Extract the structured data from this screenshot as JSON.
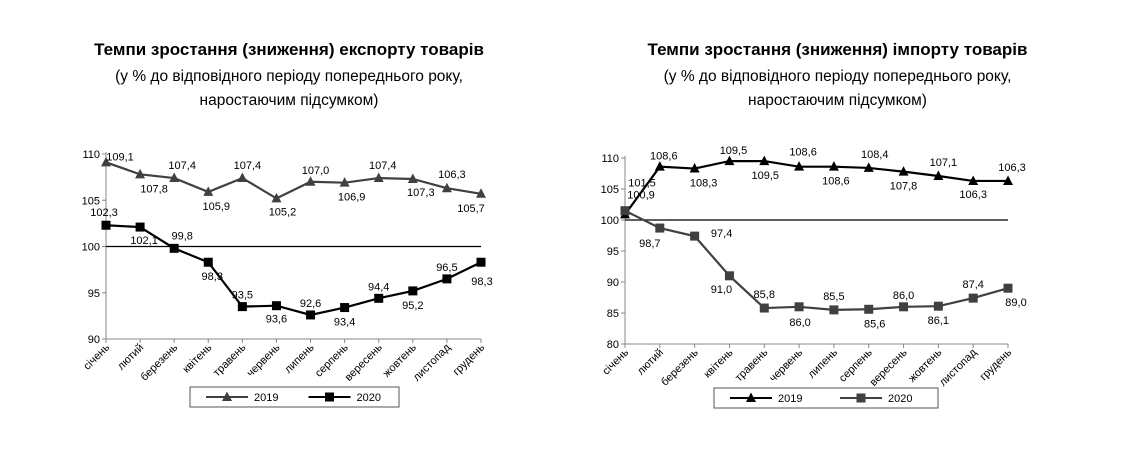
{
  "chart_data": [
    {
      "type": "line",
      "title": "Темпи зростання (зниження) експорту товарів",
      "subtitle_line1": "(у % до відповідного періоду попереднього року,",
      "subtitle_line2": "наростаючим підсумком)",
      "categories": [
        "січень",
        "лютий",
        "березень",
        "квітень",
        "травень",
        "червень",
        "липень",
        "серпень",
        "вересень",
        "жовтень",
        "листопад",
        "грудень"
      ],
      "ylim": [
        90,
        110
      ],
      "yticks": [
        90,
        95,
        100,
        105,
        110
      ],
      "reference_line": 100,
      "grid": false,
      "legend_position": "bottom",
      "series": [
        {
          "name": "2019",
          "marker": "triangle",
          "color": "#404040",
          "values": [
            109.1,
            107.8,
            107.4,
            105.9,
            107.4,
            105.2,
            107.0,
            106.9,
            107.4,
            107.3,
            106.3,
            105.7
          ],
          "labels": [
            "109,1",
            "107,8",
            "107,4",
            "105,9",
            "107,4",
            "105,2",
            "107,0",
            "106,9",
            "107,4",
            "107,3",
            "106,3",
            "105,7"
          ]
        },
        {
          "name": "2020",
          "marker": "square",
          "color": "#000000",
          "values": [
            102.3,
            102.1,
            99.8,
            98.3,
            93.5,
            93.6,
            92.6,
            93.4,
            94.4,
            95.2,
            96.5,
            98.3
          ],
          "labels": [
            "102,3",
            "102,1",
            "99,8",
            "98,3",
            "93,5",
            "93,6",
            "92,6",
            "93,4",
            "94,4",
            "95,2",
            "96,5",
            "98,3"
          ]
        }
      ]
    },
    {
      "type": "line",
      "title": "Темпи зростання (зниження) імпорту товарів",
      "subtitle_line1": "(у % до відповідного періоду попереднього року,",
      "subtitle_line2": "наростаючим підсумком)",
      "categories": [
        "січень",
        "лютий",
        "березень",
        "квітень",
        "травень",
        "червень",
        "липень",
        "серпень",
        "вересень",
        "жовтень",
        "листопад",
        "грудень"
      ],
      "ylim": [
        80,
        110
      ],
      "yticks": [
        80,
        85,
        90,
        95,
        100,
        105,
        110
      ],
      "reference_line": 100,
      "grid": false,
      "legend_position": "bottom",
      "series": [
        {
          "name": "2019",
          "marker": "triangle",
          "color": "#000000",
          "values": [
            100.9,
            108.6,
            108.3,
            109.5,
            109.5,
            108.6,
            108.6,
            108.4,
            107.8,
            107.1,
            106.3,
            106.3
          ],
          "labels": [
            "100,9",
            "108,6",
            "108,3",
            "109,5",
            "109,5",
            "108,6",
            "108,6",
            "108,4",
            "107,8",
            "107,1",
            "106,3",
            "106,3"
          ]
        },
        {
          "name": "2020",
          "marker": "square",
          "color": "#404040",
          "values": [
            101.5,
            98.7,
            97.4,
            91.0,
            85.8,
            86.0,
            85.5,
            85.6,
            86.0,
            86.1,
            87.4,
            89.0
          ],
          "labels": [
            "101,5",
            "98,7",
            "97,4",
            "91,0",
            "85,8",
            "86,0",
            "85,5",
            "85,6",
            "86,0",
            "86,1",
            "87,4",
            "89,0"
          ]
        }
      ]
    }
  ]
}
